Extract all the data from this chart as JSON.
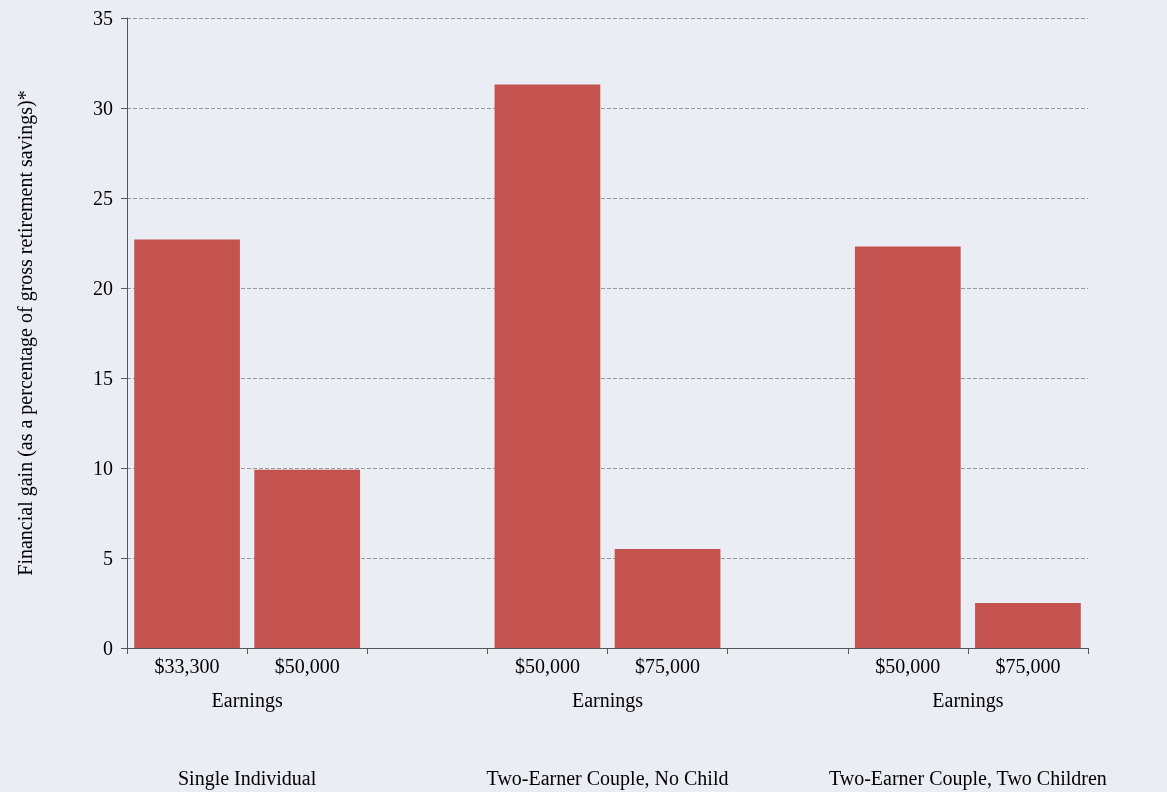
{
  "chart_data": {
    "type": "bar",
    "ylabel": "Financial gain (as a percentage of gross retirement savings)*",
    "categories": [
      "$33,300",
      "$50,000",
      null,
      "$50,000",
      "$75,000",
      null,
      "$50,000",
      "$75,000"
    ],
    "values": [
      22.7,
      9.9,
      null,
      31.3,
      5.5,
      null,
      22.3,
      2.5
    ],
    "color": "#c4524e",
    "ylim": [
      0,
      35
    ],
    "yticks": [
      0,
      5,
      10,
      15,
      20,
      25,
      30,
      35
    ],
    "grid": "y",
    "annotations": [
      "Earnings",
      "Earnings",
      "Earnings",
      "Single Individual",
      "Two-Earner Couple, No Child",
      "Two-Earner Couple, Two Children"
    ]
  }
}
